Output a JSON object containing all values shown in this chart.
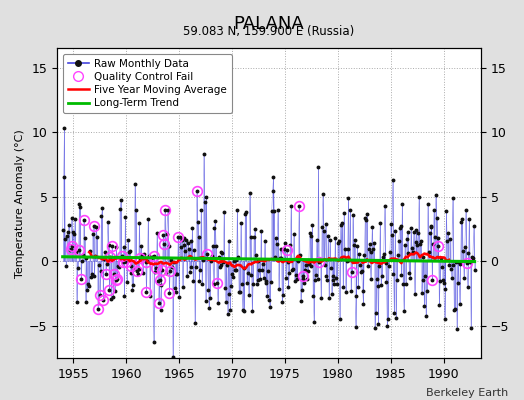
{
  "title": "PALANA",
  "subtitle": "59.083 N, 159.900 E (Russia)",
  "ylabel": "Temperature Anomaly (°C)",
  "xlim": [
    1953.5,
    1993.5
  ],
  "ylim": [
    -7.5,
    16.5
  ],
  "yticks": [
    -5,
    0,
    5,
    10,
    15
  ],
  "xticks": [
    1955,
    1960,
    1965,
    1970,
    1975,
    1980,
    1985,
    1990
  ],
  "footer": "Berkeley Earth",
  "background_color": "#e0e0e0",
  "plot_bg_color": "#ffffff",
  "seed": 137,
  "raw_line_color": "#4444dd",
  "raw_dot_color": "#111111",
  "qc_circle_color": "#ff44ff",
  "moving_avg_color": "#ff0000",
  "trend_color": "#00bb00",
  "std_dev": 2.2,
  "n_months_start": 1954,
  "n_months_end": 1993
}
